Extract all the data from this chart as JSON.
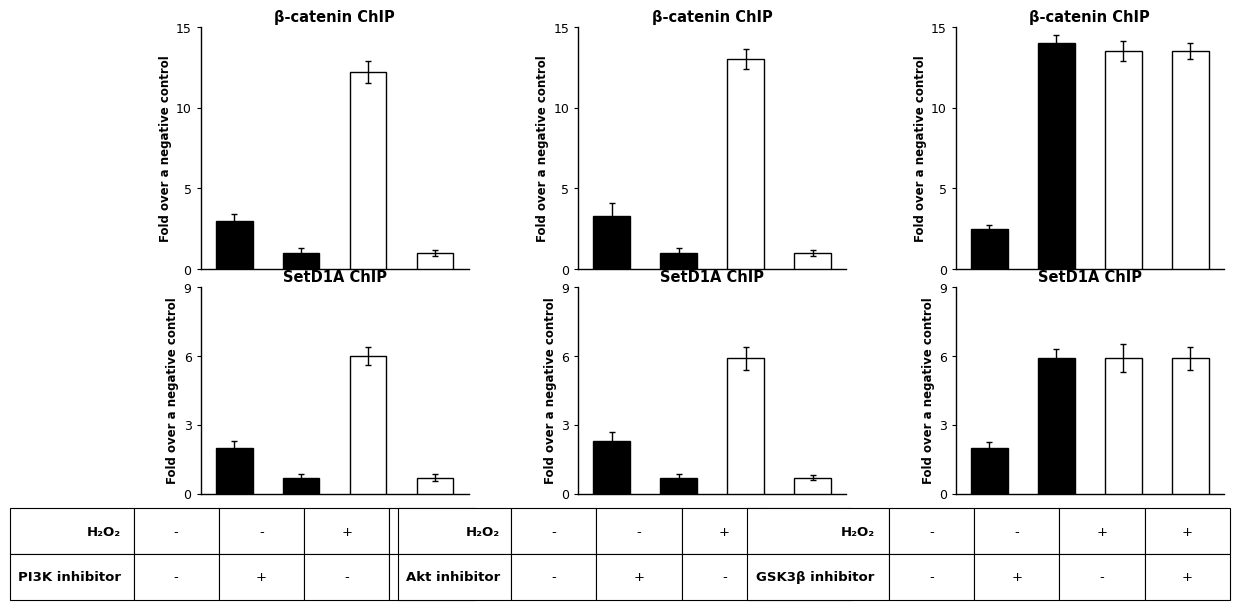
{
  "panels": [
    {
      "inhibitor_label": "PI3K inhibitor",
      "beta_catenin": {
        "title": "β-catenin ChIP",
        "values": [
          3.0,
          1.0,
          12.2,
          1.0
        ],
        "errors": [
          0.4,
          0.3,
          0.7,
          0.2
        ],
        "colors": [
          "#000000",
          "#000000",
          "#ffffff",
          "#ffffff"
        ],
        "ylim": [
          0,
          15
        ],
        "yticks": [
          0,
          5,
          10,
          15
        ]
      },
      "setd1a": {
        "title": "SetD1A ChIP",
        "values": [
          2.0,
          0.7,
          6.0,
          0.7
        ],
        "errors": [
          0.3,
          0.15,
          0.4,
          0.15
        ],
        "colors": [
          "#000000",
          "#000000",
          "#ffffff",
          "#ffffff"
        ],
        "ylim": [
          0,
          9
        ],
        "yticks": [
          0,
          3,
          6,
          9
        ]
      },
      "h2o2_row": [
        "-",
        "-",
        "+",
        "+"
      ],
      "inh_row": [
        "-",
        "+",
        "-",
        "+"
      ]
    },
    {
      "inhibitor_label": "Akt inhibitor",
      "beta_catenin": {
        "title": "β-catenin ChIP",
        "values": [
          3.3,
          1.0,
          13.0,
          1.0
        ],
        "errors": [
          0.8,
          0.3,
          0.6,
          0.2
        ],
        "colors": [
          "#000000",
          "#000000",
          "#ffffff",
          "#ffffff"
        ],
        "ylim": [
          0,
          15
        ],
        "yticks": [
          0,
          5,
          10,
          15
        ]
      },
      "setd1a": {
        "title": "SetD1A ChIP",
        "values": [
          2.3,
          0.7,
          5.9,
          0.7
        ],
        "errors": [
          0.4,
          0.15,
          0.5,
          0.12
        ],
        "colors": [
          "#000000",
          "#000000",
          "#ffffff",
          "#ffffff"
        ],
        "ylim": [
          0,
          9
        ],
        "yticks": [
          0,
          3,
          6,
          9
        ]
      },
      "h2o2_row": [
        "-",
        "-",
        "+",
        "+"
      ],
      "inh_row": [
        "-",
        "+",
        "-",
        "+"
      ]
    },
    {
      "inhibitor_label": "GSK3β inhibitor",
      "beta_catenin": {
        "title": "β-catenin ChIP",
        "values": [
          2.5,
          14.0,
          13.5,
          13.5
        ],
        "errors": [
          0.2,
          0.5,
          0.6,
          0.5
        ],
        "colors": [
          "#000000",
          "#000000",
          "#ffffff",
          "#ffffff"
        ],
        "ylim": [
          0,
          15
        ],
        "yticks": [
          0,
          5,
          10,
          15
        ]
      },
      "setd1a": {
        "title": "SetD1A ChIP",
        "values": [
          2.0,
          5.9,
          5.9,
          5.9
        ],
        "errors": [
          0.25,
          0.4,
          0.6,
          0.5
        ],
        "colors": [
          "#000000",
          "#000000",
          "#ffffff",
          "#ffffff"
        ],
        "ylim": [
          0,
          9
        ],
        "yticks": [
          0,
          3,
          6,
          9
        ]
      },
      "h2o2_row": [
        "-",
        "-",
        "+",
        "+"
      ],
      "inh_row": [
        "-",
        "+",
        "-",
        "+"
      ]
    }
  ],
  "ylabel": "Fold over a negative control",
  "bar_width": 0.55,
  "bar_edge_color": "#000000",
  "bar_edge_width": 1.0,
  "error_capsize": 2.5,
  "error_color": "#000000",
  "error_linewidth": 1.0,
  "title_fontsize": 10.5,
  "ylabel_fontsize": 8.5,
  "tick_fontsize": 9,
  "table_fontsize": 9.5
}
